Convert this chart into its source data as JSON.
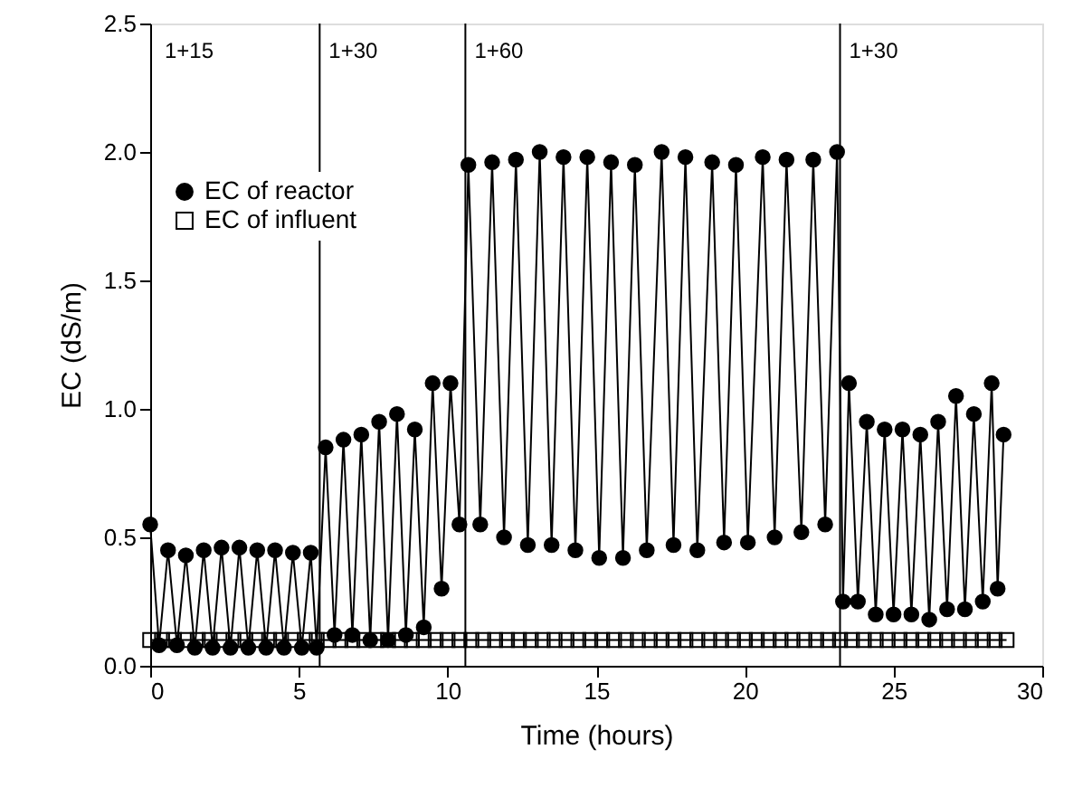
{
  "chart_data": {
    "type": "line",
    "xlabel": "Time (hours)",
    "ylabel": "EC (dS/m)",
    "xlim": [
      0,
      30
    ],
    "xticks": [
      0,
      5,
      10,
      15,
      20,
      25,
      30
    ],
    "ylim": [
      0,
      2.5
    ],
    "yticks": [
      {
        "value": 0,
        "label": "0.0"
      },
      0.5,
      {
        "value": 1,
        "label": "1.0"
      },
      1.5,
      {
        "value": 2,
        "label": "2.0"
      },
      2.5
    ],
    "grid": false,
    "legend": "top left",
    "line_style": "solid",
    "series": [
      {
        "name": "EC of reactor",
        "color": "#000000",
        "marker": "circle",
        "x": [
          0,
          0.3,
          0.6,
          0.9,
          1.2,
          1.5,
          1.8,
          2.1,
          2.4,
          2.7,
          3.0,
          3.3,
          3.6,
          3.9,
          4.2,
          4.5,
          4.8,
          5.1,
          5.4,
          5.6,
          5.9,
          6.2,
          6.5,
          6.8,
          7.1,
          7.4,
          7.7,
          8.0,
          8.3,
          8.6,
          8.9,
          9.2,
          9.5,
          9.8,
          10.1,
          10.4,
          10.7,
          11.1,
          11.5,
          11.9,
          12.3,
          12.7,
          13.1,
          13.5,
          13.9,
          14.3,
          14.7,
          15.1,
          15.5,
          15.9,
          16.3,
          16.7,
          17.2,
          17.6,
          18.0,
          18.4,
          18.9,
          19.3,
          19.7,
          20.1,
          20.6,
          21.0,
          21.4,
          21.9,
          22.3,
          22.7,
          23.1,
          23.3,
          23.5,
          23.8,
          24.1,
          24.4,
          24.7,
          25.0,
          25.3,
          25.6,
          25.9,
          26.2,
          26.5,
          26.8,
          27.1,
          27.4,
          27.7,
          28.0,
          28.3,
          28.5,
          28.7
        ],
        "values": [
          0.55,
          0.08,
          0.45,
          0.08,
          0.43,
          0.07,
          0.45,
          0.07,
          0.46,
          0.07,
          0.46,
          0.07,
          0.45,
          0.07,
          0.45,
          0.07,
          0.44,
          0.07,
          0.44,
          0.07,
          0.85,
          0.12,
          0.88,
          0.12,
          0.9,
          0.1,
          0.95,
          0.1,
          0.98,
          0.12,
          0.92,
          0.15,
          1.1,
          0.3,
          1.1,
          0.55,
          1.95,
          0.55,
          1.96,
          0.5,
          1.97,
          0.47,
          2.0,
          0.47,
          1.98,
          0.45,
          1.98,
          0.42,
          1.96,
          0.42,
          1.95,
          0.45,
          2.0,
          0.47,
          1.98,
          0.45,
          1.96,
          0.48,
          1.95,
          0.48,
          1.98,
          0.5,
          1.97,
          0.52,
          1.97,
          0.55,
          2.0,
          0.25,
          1.1,
          0.25,
          0.95,
          0.2,
          0.92,
          0.2,
          0.92,
          0.2,
          0.9,
          0.18,
          0.95,
          0.22,
          1.05,
          0.22,
          0.98,
          0.25,
          1.1,
          0.3,
          0.9
        ]
      },
      {
        "name": "EC of influent",
        "color": "#000000",
        "marker": "square",
        "x": [
          0,
          0.4,
          0.8,
          1.2,
          1.6,
          2.0,
          2.4,
          2.8,
          3.2,
          3.6,
          4.0,
          4.4,
          4.8,
          5.2,
          5.6,
          6.0,
          6.4,
          6.8,
          7.2,
          7.6,
          8.0,
          8.4,
          8.8,
          9.2,
          9.6,
          10.0,
          10.4,
          10.8,
          11.2,
          11.6,
          12.0,
          12.4,
          12.8,
          13.2,
          13.6,
          14.0,
          14.4,
          14.8,
          15.2,
          15.6,
          16.0,
          16.4,
          16.8,
          17.2,
          17.6,
          18.0,
          18.4,
          18.8,
          19.2,
          19.6,
          20.0,
          20.4,
          20.8,
          21.2,
          21.6,
          22.0,
          22.4,
          22.8,
          23.2,
          23.6,
          24.0,
          24.4,
          24.8,
          25.2,
          25.6,
          26.0,
          26.4,
          26.8,
          27.2,
          27.6,
          28.0,
          28.4,
          28.8
        ],
        "values": [
          0.1,
          0.1,
          0.1,
          0.1,
          0.1,
          0.1,
          0.1,
          0.1,
          0.1,
          0.1,
          0.1,
          0.1,
          0.1,
          0.1,
          0.1,
          0.1,
          0.1,
          0.1,
          0.1,
          0.1,
          0.1,
          0.1,
          0.1,
          0.1,
          0.1,
          0.1,
          0.1,
          0.1,
          0.1,
          0.1,
          0.1,
          0.1,
          0.1,
          0.1,
          0.1,
          0.1,
          0.1,
          0.1,
          0.1,
          0.1,
          0.1,
          0.1,
          0.1,
          0.1,
          0.1,
          0.1,
          0.1,
          0.1,
          0.1,
          0.1,
          0.1,
          0.1,
          0.1,
          0.1,
          0.1,
          0.1,
          0.1,
          0.1,
          0.1,
          0.1,
          0.1,
          0.1,
          0.1,
          0.1,
          0.1,
          0.1,
          0.1,
          0.1,
          0.1,
          0.1,
          0.1,
          0.1,
          0.1
        ]
      }
    ],
    "ref_lines": [
      {
        "axis": "x",
        "value": 5.7,
        "color": "#000000"
      },
      {
        "axis": "x",
        "value": 10.6,
        "color": "#000000"
      },
      {
        "axis": "x",
        "value": 23.2,
        "color": "#000000"
      }
    ],
    "annotations": [
      "1+15",
      "1+30",
      "1+60",
      "1+30"
    ]
  }
}
